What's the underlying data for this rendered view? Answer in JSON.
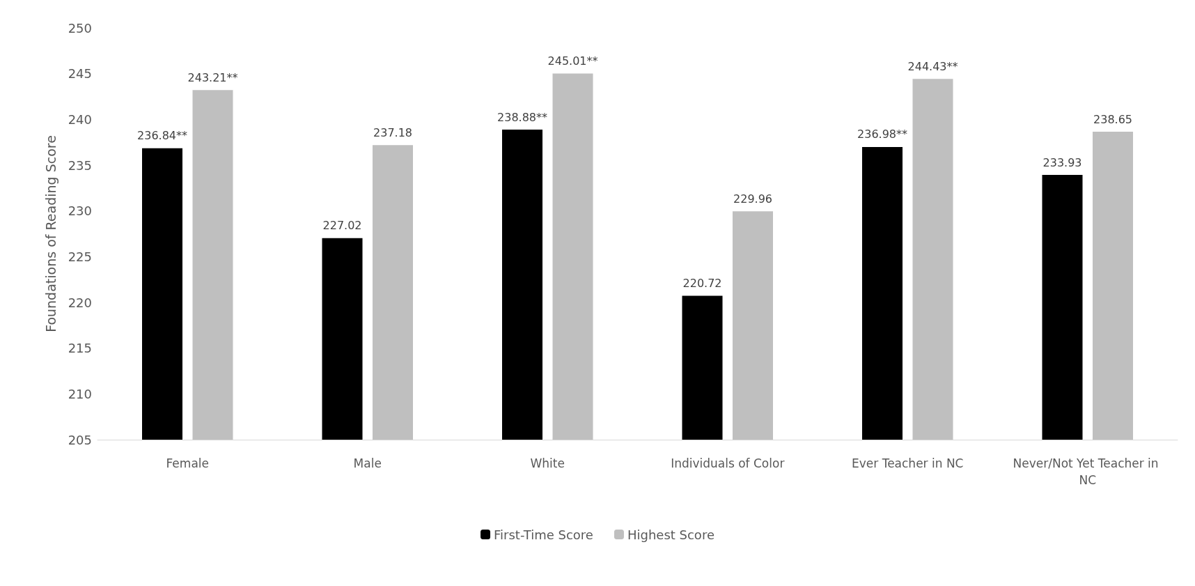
{
  "chart_data": {
    "type": "bar",
    "ylabel": "Foundations of Reading Score",
    "categories": [
      "Female",
      "Male",
      "White",
      "Individuals of Color",
      "Ever Teacher in NC",
      "Never/Not Yet Teacher in NC"
    ],
    "series": [
      {
        "name": "First-Time Score",
        "color": "#000000",
        "values": [
          236.84,
          227.02,
          238.88,
          220.72,
          236.98,
          233.93
        ],
        "value_labels": [
          "236.84**",
          "227.02",
          "238.88**",
          "220.72",
          "236.98**",
          "233.93"
        ]
      },
      {
        "name": "Highest Score",
        "color": "#bfbfbf",
        "values": [
          243.21,
          237.18,
          245.01,
          229.96,
          244.43,
          238.65
        ],
        "value_labels": [
          "243.21**",
          "237.18",
          "245.01**",
          "229.96",
          "244.43**",
          "238.65"
        ]
      }
    ],
    "ylim": [
      205,
      250
    ],
    "yticks": [
      205,
      210,
      215,
      220,
      225,
      230,
      235,
      240,
      245,
      250
    ],
    "grid": false,
    "legend": "bottom"
  }
}
